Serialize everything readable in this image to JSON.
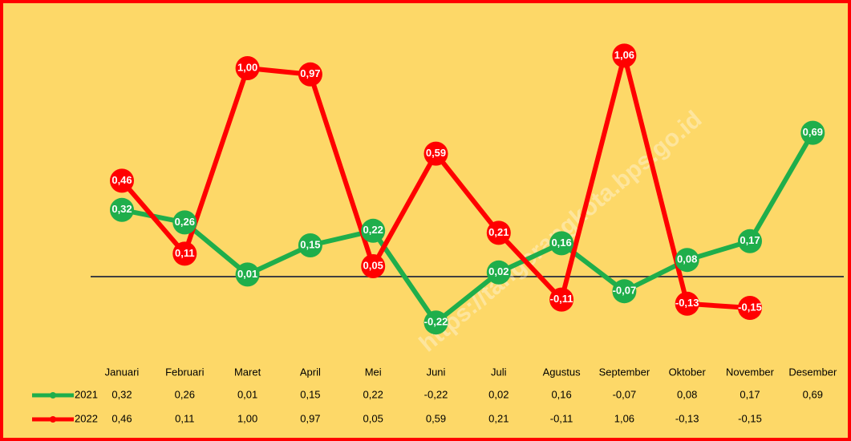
{
  "chart_data": {
    "type": "line",
    "categories": [
      "Januari",
      "Februari",
      "Maret",
      "April",
      "Mei",
      "Juni",
      "Juli",
      "Agustus",
      "September",
      "Oktober",
      "November",
      "Desember"
    ],
    "series": [
      {
        "name": "2021",
        "color": "#1fae4b",
        "values": [
          0.32,
          0.26,
          0.01,
          0.15,
          0.22,
          -0.22,
          0.02,
          0.16,
          -0.07,
          0.08,
          0.17,
          0.69
        ],
        "value_labels": [
          "0,32",
          "0,26",
          "0,01",
          "0,15",
          "0,22",
          "-0,22",
          "0,02",
          "0,16",
          "-0,07",
          "0,08",
          "0,17",
          "0,69"
        ]
      },
      {
        "name": "2022",
        "color": "#ff0000",
        "values": [
          0.46,
          0.11,
          1.0,
          0.97,
          0.05,
          0.59,
          0.21,
          -0.11,
          1.06,
          -0.13,
          -0.15,
          null
        ],
        "value_labels": [
          "0,46",
          "0,11",
          "1,00",
          "0,97",
          "0,05",
          "0,59",
          "0,21",
          "-0,11",
          "1,06",
          "-0,13",
          "-0,15",
          null
        ]
      }
    ],
    "ylim": [
      -0.3,
      1.2
    ],
    "watermark": "https://tangerangkota.bps.go.id"
  }
}
